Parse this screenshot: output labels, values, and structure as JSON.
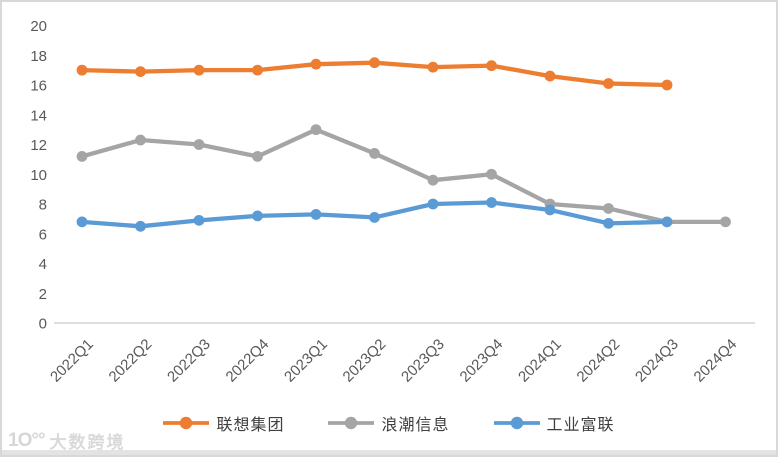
{
  "chart_data": {
    "type": "line",
    "categories": [
      "2022Q1",
      "2022Q2",
      "2022Q3",
      "2022Q4",
      "2023Q1",
      "2023Q2",
      "2023Q3",
      "2023Q4",
      "2024Q1",
      "2024Q2",
      "2024Q3",
      "2024Q4"
    ],
    "series": [
      {
        "name": "联想集团",
        "color": "#ED7D31",
        "values": [
          17.0,
          16.9,
          17.0,
          17.0,
          17.4,
          17.5,
          17.2,
          17.3,
          16.6,
          16.1,
          16.0,
          null
        ]
      },
      {
        "name": "浪潮信息",
        "color": "#A5A5A5",
        "values": [
          11.2,
          12.3,
          12.0,
          11.2,
          13.0,
          11.4,
          9.6,
          10.0,
          8.0,
          7.7,
          6.8,
          6.8
        ]
      },
      {
        "name": "工业富联",
        "color": "#5B9BD5",
        "values": [
          6.8,
          6.5,
          6.9,
          7.2,
          7.3,
          7.1,
          8.0,
          8.1,
          7.6,
          6.7,
          6.8,
          null
        ]
      }
    ],
    "title": "",
    "xlabel": "",
    "ylabel": "",
    "ylim": [
      0,
      20
    ],
    "yticks": [
      0,
      2,
      4,
      6,
      8,
      10,
      12,
      14,
      16,
      18,
      20
    ],
    "grid": false,
    "legend_position": "bottom",
    "axis_color": "#c9c9c9",
    "tick_label_color": "#595959",
    "legend_text_color": "#404040"
  },
  "watermark": {
    "logo": "1O°°",
    "text": "大数跨境"
  }
}
